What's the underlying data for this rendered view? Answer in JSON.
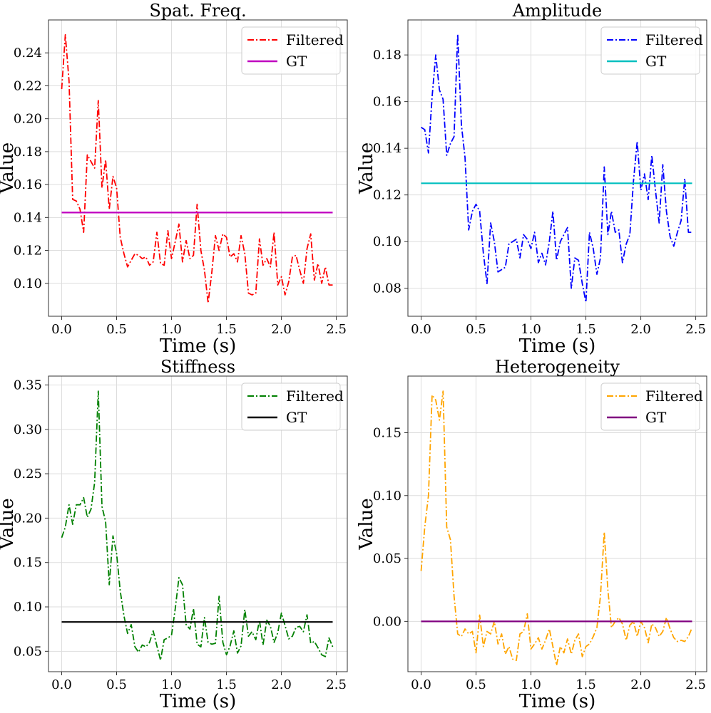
{
  "figure": {
    "type": "multi-panel line chart",
    "shared_xlabel": "Time (s)",
    "shared_ylabel": "Value"
  },
  "chart_data": [
    {
      "type": "line",
      "title": "Spat. Freq.",
      "xlabel": "Time (s)",
      "ylabel": "Value",
      "xlim": [
        -0.12,
        2.6
      ],
      "ylim": [
        0.08,
        0.26
      ],
      "xticks": [
        0.0,
        0.5,
        1.0,
        1.5,
        2.0,
        2.5
      ],
      "xtick_labels": [
        "0.0",
        "0.5",
        "1.0",
        "1.5",
        "2.0",
        "2.5"
      ],
      "yticks": [
        0.1,
        0.12,
        0.14,
        0.16,
        0.18,
        0.2,
        0.22,
        0.24
      ],
      "ytick_labels": [
        "0.10",
        "0.12",
        "0.14",
        "0.16",
        "0.18",
        "0.20",
        "0.22",
        "0.24"
      ],
      "grid": true,
      "legend_position": "top-right",
      "series": [
        {
          "name": "Filtered",
          "style": "dashdot",
          "color": "#ff0000",
          "x": [
            0.0,
            0.033,
            0.067,
            0.1,
            0.133,
            0.167,
            0.2,
            0.233,
            0.267,
            0.3,
            0.333,
            0.367,
            0.4,
            0.433,
            0.467,
            0.5,
            0.533,
            0.567,
            0.6,
            0.633,
            0.667,
            0.7,
            0.733,
            0.767,
            0.8,
            0.833,
            0.867,
            0.9,
            0.933,
            0.967,
            1.0,
            1.033,
            1.067,
            1.1,
            1.133,
            1.167,
            1.2,
            1.233,
            1.267,
            1.3,
            1.333,
            1.367,
            1.4,
            1.433,
            1.467,
            1.5,
            1.533,
            1.567,
            1.6,
            1.633,
            1.667,
            1.7,
            1.733,
            1.767,
            1.8,
            1.833,
            1.867,
            1.9,
            1.933,
            1.967,
            2.0,
            2.033,
            2.067,
            2.1,
            2.133,
            2.167,
            2.2,
            2.233,
            2.267,
            2.3,
            2.333,
            2.367,
            2.4,
            2.433,
            2.467
          ],
          "values": [
            0.218,
            0.251,
            0.223,
            0.151,
            0.15,
            0.145,
            0.131,
            0.178,
            0.174,
            0.17,
            0.211,
            0.158,
            0.175,
            0.145,
            0.165,
            0.158,
            0.128,
            0.118,
            0.11,
            0.114,
            0.118,
            0.117,
            0.115,
            0.116,
            0.111,
            0.113,
            0.131,
            0.112,
            0.111,
            0.132,
            0.115,
            0.125,
            0.136,
            0.113,
            0.126,
            0.115,
            0.117,
            0.148,
            0.12,
            0.108,
            0.088,
            0.107,
            0.129,
            0.12,
            0.13,
            0.128,
            0.116,
            0.118,
            0.113,
            0.129,
            0.118,
            0.094,
            0.093,
            0.094,
            0.127,
            0.111,
            0.115,
            0.11,
            0.131,
            0.099,
            0.104,
            0.093,
            0.101,
            0.116,
            0.117,
            0.108,
            0.1,
            0.121,
            0.13,
            0.102,
            0.112,
            0.1,
            0.11,
            0.099,
            0.099
          ]
        },
        {
          "name": "GT",
          "style": "solid",
          "color": "#bf00bf",
          "x": [
            0.0,
            2.467
          ],
          "values": [
            0.143,
            0.143
          ]
        }
      ]
    },
    {
      "type": "line",
      "title": "Amplitude",
      "xlabel": "Time (s)",
      "ylabel": "Value",
      "xlim": [
        -0.12,
        2.6
      ],
      "ylim": [
        0.068,
        0.195
      ],
      "xticks": [
        0.0,
        0.5,
        1.0,
        1.5,
        2.0,
        2.5
      ],
      "xtick_labels": [
        "0.0",
        "0.5",
        "1.0",
        "1.5",
        "2.0",
        "2.5"
      ],
      "yticks": [
        0.08,
        0.1,
        0.12,
        0.14,
        0.16,
        0.18
      ],
      "ytick_labels": [
        "0.08",
        "0.10",
        "0.12",
        "0.14",
        "0.16",
        "0.18"
      ],
      "grid": true,
      "legend_position": "top-right",
      "series": [
        {
          "name": "Filtered",
          "style": "dashdot",
          "color": "#0000ff",
          "x": [
            0.0,
            0.033,
            0.067,
            0.1,
            0.133,
            0.167,
            0.2,
            0.233,
            0.267,
            0.3,
            0.333,
            0.367,
            0.4,
            0.433,
            0.467,
            0.5,
            0.533,
            0.567,
            0.6,
            0.633,
            0.667,
            0.7,
            0.733,
            0.767,
            0.8,
            0.833,
            0.867,
            0.9,
            0.933,
            0.967,
            1.0,
            1.033,
            1.067,
            1.1,
            1.133,
            1.167,
            1.2,
            1.233,
            1.267,
            1.3,
            1.333,
            1.367,
            1.4,
            1.433,
            1.467,
            1.5,
            1.533,
            1.567,
            1.6,
            1.633,
            1.667,
            1.7,
            1.733,
            1.767,
            1.8,
            1.833,
            1.867,
            1.9,
            1.933,
            1.967,
            2.0,
            2.033,
            2.067,
            2.1,
            2.133,
            2.167,
            2.2,
            2.233,
            2.267,
            2.3,
            2.333,
            2.367,
            2.4,
            2.433,
            2.467
          ],
          "values": [
            0.149,
            0.148,
            0.138,
            0.162,
            0.18,
            0.165,
            0.161,
            0.137,
            0.142,
            0.145,
            0.189,
            0.15,
            0.136,
            0.105,
            0.113,
            0.116,
            0.113,
            0.095,
            0.082,
            0.108,
            0.1,
            0.087,
            0.088,
            0.089,
            0.099,
            0.1,
            0.101,
            0.093,
            0.103,
            0.101,
            0.097,
            0.104,
            0.091,
            0.095,
            0.09,
            0.1,
            0.113,
            0.092,
            0.1,
            0.103,
            0.106,
            0.08,
            0.093,
            0.092,
            0.082,
            0.074,
            0.104,
            0.097,
            0.086,
            0.093,
            0.132,
            0.103,
            0.113,
            0.104,
            0.105,
            0.091,
            0.099,
            0.103,
            0.126,
            0.143,
            0.122,
            0.129,
            0.118,
            0.137,
            0.122,
            0.108,
            0.133,
            0.113,
            0.102,
            0.098,
            0.104,
            0.109,
            0.127,
            0.104,
            0.104
          ]
        },
        {
          "name": "GT",
          "style": "solid",
          "color": "#00bfbf",
          "x": [
            0.0,
            2.467
          ],
          "values": [
            0.125,
            0.125
          ]
        }
      ]
    },
    {
      "type": "line",
      "title": "Stiffness",
      "xlabel": "Time (s)",
      "ylabel": "Value",
      "xlim": [
        -0.12,
        2.6
      ],
      "ylim": [
        0.027,
        0.36
      ],
      "xticks": [
        0.0,
        0.5,
        1.0,
        1.5,
        2.0,
        2.5
      ],
      "xtick_labels": [
        "0.0",
        "0.5",
        "1.0",
        "1.5",
        "2.0",
        "2.5"
      ],
      "yticks": [
        0.05,
        0.1,
        0.15,
        0.2,
        0.25,
        0.3,
        0.35
      ],
      "ytick_labels": [
        "0.05",
        "0.10",
        "0.15",
        "0.20",
        "0.25",
        "0.30",
        "0.35"
      ],
      "grid": true,
      "legend_position": "top-right",
      "series": [
        {
          "name": "Filtered",
          "style": "dashdot",
          "color": "#008000",
          "x": [
            0.0,
            0.033,
            0.067,
            0.1,
            0.133,
            0.167,
            0.2,
            0.233,
            0.267,
            0.3,
            0.333,
            0.367,
            0.4,
            0.433,
            0.467,
            0.5,
            0.533,
            0.567,
            0.6,
            0.633,
            0.667,
            0.7,
            0.733,
            0.767,
            0.8,
            0.833,
            0.867,
            0.9,
            0.933,
            0.967,
            1.0,
            1.033,
            1.067,
            1.1,
            1.133,
            1.167,
            1.2,
            1.233,
            1.267,
            1.3,
            1.333,
            1.367,
            1.4,
            1.433,
            1.467,
            1.5,
            1.533,
            1.567,
            1.6,
            1.633,
            1.667,
            1.7,
            1.733,
            1.767,
            1.8,
            1.833,
            1.867,
            1.9,
            1.933,
            1.967,
            2.0,
            2.033,
            2.067,
            2.1,
            2.133,
            2.167,
            2.2,
            2.233,
            2.267,
            2.3,
            2.333,
            2.367,
            2.4,
            2.433,
            2.467
          ],
          "values": [
            0.178,
            0.19,
            0.215,
            0.193,
            0.215,
            0.215,
            0.223,
            0.201,
            0.21,
            0.24,
            0.343,
            0.213,
            0.196,
            0.125,
            0.18,
            0.16,
            0.118,
            0.09,
            0.07,
            0.08,
            0.055,
            0.049,
            0.057,
            0.055,
            0.06,
            0.073,
            0.056,
            0.04,
            0.063,
            0.065,
            0.068,
            0.097,
            0.133,
            0.125,
            0.08,
            0.075,
            0.098,
            0.058,
            0.055,
            0.088,
            0.06,
            0.058,
            0.059,
            0.112,
            0.06,
            0.046,
            0.056,
            0.073,
            0.048,
            0.056,
            0.097,
            0.067,
            0.072,
            0.063,
            0.085,
            0.057,
            0.085,
            0.078,
            0.06,
            0.071,
            0.093,
            0.079,
            0.064,
            0.067,
            0.077,
            0.078,
            0.072,
            0.091,
            0.059,
            0.061,
            0.054,
            0.046,
            0.044,
            0.065,
            0.055
          ]
        },
        {
          "name": "GT",
          "style": "solid",
          "color": "#000000",
          "x": [
            0.0,
            2.467
          ],
          "values": [
            0.083,
            0.083
          ]
        }
      ]
    },
    {
      "type": "line",
      "title": "Heterogeneity",
      "xlabel": "Time (s)",
      "ylabel": "Value",
      "xlim": [
        -0.12,
        2.6
      ],
      "ylim": [
        -0.04,
        0.195
      ],
      "xticks": [
        0.0,
        0.5,
        1.0,
        1.5,
        2.0,
        2.5
      ],
      "xtick_labels": [
        "0.0",
        "0.5",
        "1.0",
        "1.5",
        "2.0",
        "2.5"
      ],
      "yticks": [
        0.0,
        0.05,
        0.1,
        0.15
      ],
      "ytick_labels": [
        "0.00",
        "0.05",
        "0.10",
        "0.15"
      ],
      "grid": true,
      "legend_position": "top-right",
      "series": [
        {
          "name": "Filtered",
          "style": "dashdot",
          "color": "#ffa500",
          "x": [
            0.0,
            0.033,
            0.067,
            0.1,
            0.133,
            0.167,
            0.2,
            0.233,
            0.267,
            0.3,
            0.333,
            0.367,
            0.4,
            0.433,
            0.467,
            0.5,
            0.533,
            0.567,
            0.6,
            0.633,
            0.667,
            0.7,
            0.733,
            0.767,
            0.8,
            0.833,
            0.867,
            0.9,
            0.933,
            0.967,
            1.0,
            1.033,
            1.067,
            1.1,
            1.133,
            1.167,
            1.2,
            1.233,
            1.267,
            1.3,
            1.333,
            1.367,
            1.4,
            1.433,
            1.467,
            1.5,
            1.533,
            1.567,
            1.6,
            1.633,
            1.667,
            1.7,
            1.733,
            1.767,
            1.8,
            1.833,
            1.867,
            1.9,
            1.933,
            1.967,
            2.0,
            2.033,
            2.067,
            2.1,
            2.133,
            2.167,
            2.2,
            2.233,
            2.267,
            2.3,
            2.333,
            2.367,
            2.4,
            2.433,
            2.467
          ],
          "values": [
            0.04,
            0.075,
            0.1,
            0.18,
            0.176,
            0.16,
            0.183,
            0.075,
            0.065,
            0.02,
            -0.01,
            -0.012,
            -0.006,
            -0.01,
            -0.008,
            -0.025,
            0.005,
            -0.02,
            -0.008,
            -0.01,
            0.0,
            -0.018,
            -0.01,
            -0.026,
            -0.02,
            -0.03,
            -0.031,
            -0.01,
            -0.008,
            0.006,
            -0.022,
            -0.018,
            -0.013,
            -0.022,
            -0.015,
            -0.006,
            -0.02,
            -0.035,
            -0.02,
            -0.025,
            -0.014,
            -0.026,
            -0.015,
            -0.01,
            -0.028,
            -0.02,
            -0.018,
            -0.012,
            -0.005,
            0.02,
            0.071,
            0.025,
            -0.005,
            0.0,
            0.003,
            -0.002,
            -0.015,
            -0.003,
            0.0,
            -0.012,
            0.0,
            -0.005,
            -0.017,
            -0.002,
            -0.005,
            -0.012,
            -0.008,
            0.003,
            -0.006,
            -0.013,
            -0.016,
            -0.015,
            -0.016,
            -0.012,
            -0.005
          ]
        },
        {
          "name": "GT",
          "style": "solid",
          "color": "#800080",
          "x": [
            0.0,
            2.467
          ],
          "values": [
            0.0,
            0.0
          ]
        }
      ]
    }
  ]
}
